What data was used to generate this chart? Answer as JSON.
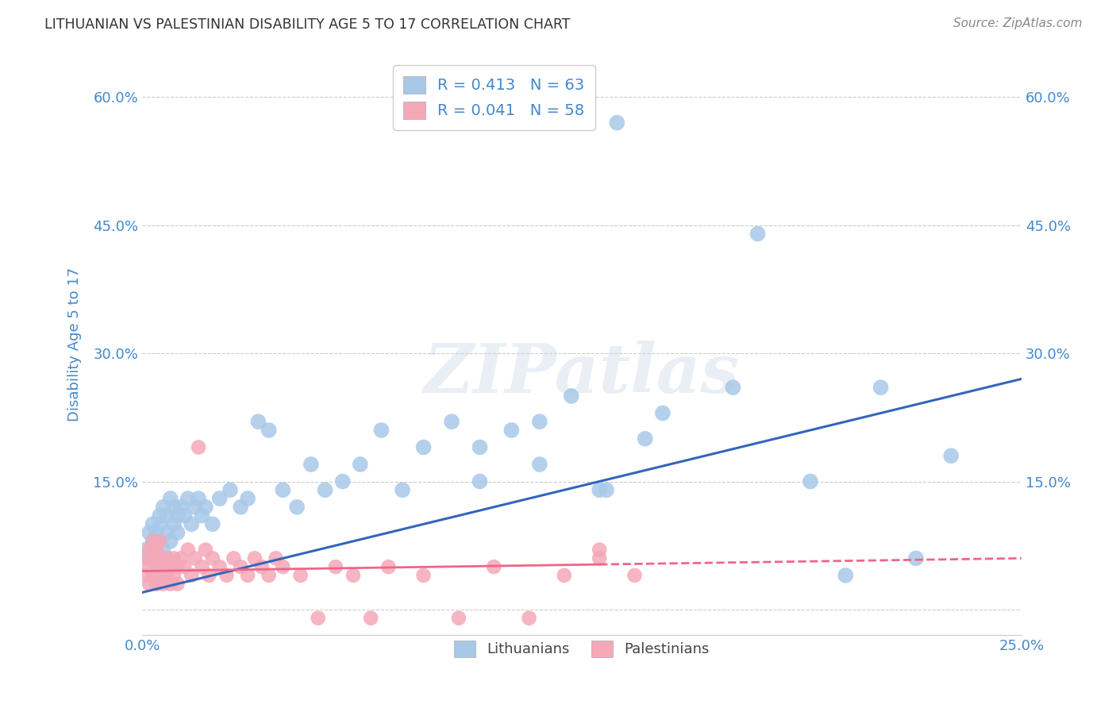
{
  "title": "LITHUANIAN VS PALESTINIAN DISABILITY AGE 5 TO 17 CORRELATION CHART",
  "source": "Source: ZipAtlas.com",
  "ylabel": "Disability Age 5 to 17",
  "xlim": [
    0.0,
    0.25
  ],
  "ylim": [
    -0.03,
    0.65
  ],
  "yticks": [
    0.0,
    0.15,
    0.3,
    0.45,
    0.6
  ],
  "ytick_labels": [
    "",
    "15.0%",
    "30.0%",
    "45.0%",
    "60.0%"
  ],
  "xticks": [
    0.0,
    0.05,
    0.1,
    0.15,
    0.2,
    0.25
  ],
  "xtick_labels": [
    "0.0%",
    "",
    "",
    "",
    "",
    "25.0%"
  ],
  "lit_color": "#a8c8e8",
  "pal_color": "#f4a8b8",
  "lit_line_color": "#3366bb",
  "pal_line_color": "#ee6688",
  "background_color": "#ffffff",
  "grid_color": "#cccccc",
  "title_color": "#333333",
  "tick_color": "#4488cc",
  "ylabel_color": "#4488cc",
  "r_lit": 0.413,
  "n_lit": 63,
  "r_pal": 0.041,
  "n_pal": 58,
  "lit_line_x0": 0.0,
  "lit_line_y0": 0.02,
  "lit_line_x1": 0.25,
  "lit_line_y1": 0.27,
  "pal_line_x0": 0.0,
  "pal_line_y0": 0.045,
  "pal_line_x1_solid": 0.13,
  "pal_line_x1_dashed": 0.25,
  "pal_line_y1": 0.06,
  "watermark_text": "ZIPatlas",
  "legend_lit_label": "Lithuanians",
  "legend_pal_label": "Palestinians",
  "lit_x": [
    0.001,
    0.002,
    0.002,
    0.003,
    0.003,
    0.003,
    0.004,
    0.004,
    0.005,
    0.005,
    0.006,
    0.006,
    0.007,
    0.007,
    0.008,
    0.008,
    0.009,
    0.009,
    0.01,
    0.01,
    0.011,
    0.012,
    0.013,
    0.014,
    0.015,
    0.016,
    0.017,
    0.018,
    0.02,
    0.022,
    0.025,
    0.028,
    0.03,
    0.033,
    0.036,
    0.04,
    0.044,
    0.048,
    0.052,
    0.057,
    0.062,
    0.068,
    0.074,
    0.08,
    0.088,
    0.096,
    0.105,
    0.113,
    0.122,
    0.132,
    0.143,
    0.096,
    0.113,
    0.13,
    0.148,
    0.168,
    0.19,
    0.21,
    0.23,
    0.135,
    0.175,
    0.22,
    0.2
  ],
  "lit_y": [
    0.07,
    0.09,
    0.06,
    0.08,
    0.1,
    0.07,
    0.09,
    0.08,
    0.11,
    0.1,
    0.07,
    0.12,
    0.09,
    0.11,
    0.08,
    0.13,
    0.1,
    0.12,
    0.09,
    0.11,
    0.12,
    0.11,
    0.13,
    0.1,
    0.12,
    0.13,
    0.11,
    0.12,
    0.1,
    0.13,
    0.14,
    0.12,
    0.13,
    0.22,
    0.21,
    0.14,
    0.12,
    0.17,
    0.14,
    0.15,
    0.17,
    0.21,
    0.14,
    0.19,
    0.22,
    0.15,
    0.21,
    0.17,
    0.25,
    0.14,
    0.2,
    0.19,
    0.22,
    0.14,
    0.23,
    0.26,
    0.15,
    0.26,
    0.18,
    0.57,
    0.44,
    0.06,
    0.04
  ],
  "pal_x": [
    0.001,
    0.001,
    0.002,
    0.002,
    0.002,
    0.003,
    0.003,
    0.003,
    0.004,
    0.004,
    0.004,
    0.005,
    0.005,
    0.005,
    0.006,
    0.006,
    0.007,
    0.007,
    0.008,
    0.008,
    0.009,
    0.009,
    0.01,
    0.01,
    0.011,
    0.012,
    0.013,
    0.014,
    0.015,
    0.016,
    0.017,
    0.018,
    0.019,
    0.02,
    0.022,
    0.024,
    0.026,
    0.028,
    0.03,
    0.032,
    0.034,
    0.036,
    0.038,
    0.04,
    0.045,
    0.05,
    0.055,
    0.06,
    0.065,
    0.07,
    0.08,
    0.09,
    0.1,
    0.11,
    0.12,
    0.13,
    0.14,
    0.13
  ],
  "pal_y": [
    0.04,
    0.06,
    0.03,
    0.05,
    0.07,
    0.04,
    0.06,
    0.08,
    0.03,
    0.05,
    0.07,
    0.04,
    0.06,
    0.08,
    0.03,
    0.05,
    0.04,
    0.06,
    0.03,
    0.05,
    0.04,
    0.06,
    0.03,
    0.05,
    0.06,
    0.05,
    0.07,
    0.04,
    0.06,
    0.19,
    0.05,
    0.07,
    0.04,
    0.06,
    0.05,
    0.04,
    0.06,
    0.05,
    0.04,
    0.06,
    0.05,
    0.04,
    0.06,
    0.05,
    0.04,
    -0.01,
    0.05,
    0.04,
    -0.01,
    0.05,
    0.04,
    -0.01,
    0.05,
    -0.01,
    0.04,
    0.07,
    0.04,
    0.06
  ]
}
